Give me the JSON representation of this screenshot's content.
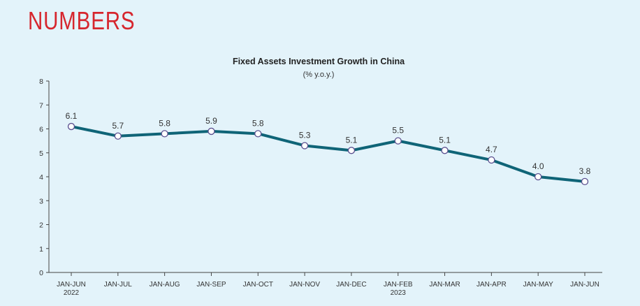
{
  "page": {
    "heading": "NUMBERS"
  },
  "colors": {
    "background": "#e3f3fa",
    "heading": "#d6262e",
    "line": "#0f6477",
    "marker_fill": "#ffffff",
    "marker_stroke": "#5a4f8f",
    "axis": "#444444"
  },
  "chart_data": {
    "type": "line",
    "title": "Fixed Assets Investment Growth in China",
    "subtitle": "(% y.o.y.)",
    "xlabel": "",
    "ylabel": "",
    "ylim": [
      0,
      8
    ],
    "yticks": [
      0,
      1,
      2,
      3,
      4,
      5,
      6,
      7,
      8
    ],
    "grid": false,
    "categories": [
      [
        "JAN-JUN",
        "2022"
      ],
      [
        "JAN-JUL"
      ],
      [
        "JAN-AUG"
      ],
      [
        "JAN-SEP"
      ],
      [
        "JAN-OCT"
      ],
      [
        "JAN-NOV"
      ],
      [
        "JAN-DEC"
      ],
      [
        "JAN-FEB",
        "2023"
      ],
      [
        "JAN-MAR"
      ],
      [
        "JAN-APR"
      ],
      [
        "JAN-MAY"
      ],
      [
        "JAN-JUN"
      ]
    ],
    "series": [
      {
        "values": [
          6.1,
          5.7,
          5.8,
          5.9,
          5.8,
          5.3,
          5.1,
          5.5,
          5.1,
          4.7,
          4.0,
          3.8
        ],
        "labels": [
          "6.1",
          "5.7",
          "5.8",
          "5.9",
          "5.8",
          "5.3",
          "5.1",
          "5.5",
          "5.1",
          "4.7",
          "4.0",
          "3.8"
        ]
      }
    ]
  }
}
